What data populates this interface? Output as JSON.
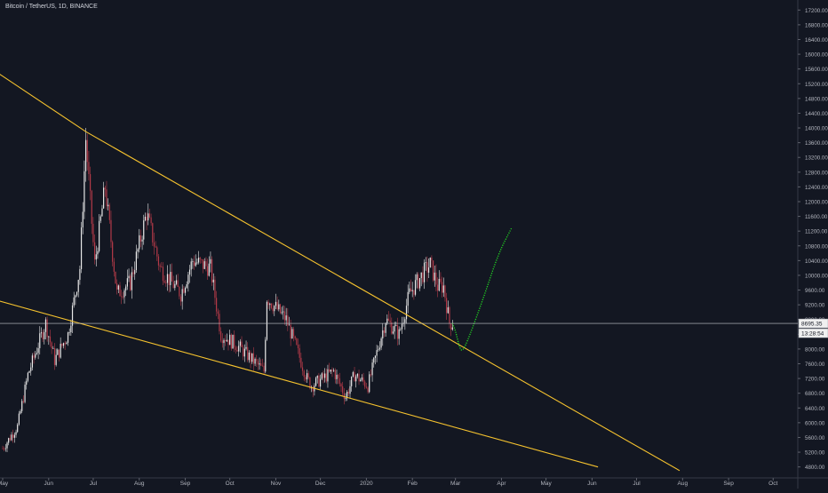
{
  "header": {
    "symbol_title": "Bitcoin / TetherUS, 1D, BINANCE"
  },
  "price_axis": {
    "ticks": [
      "17200.00",
      "16800.00",
      "16400.00",
      "16000.00",
      "15600.00",
      "15200.00",
      "14800.00",
      "14400.00",
      "14000.00",
      "13600.00",
      "13200.00",
      "12800.00",
      "12400.00",
      "12000.00",
      "11600.00",
      "11200.00",
      "10800.00",
      "10400.00",
      "10000.00",
      "9600.00",
      "9200.00",
      "8800.00",
      "8400.00",
      "8000.00",
      "7600.00",
      "7200.00",
      "6800.00",
      "6400.00",
      "6000.00",
      "5600.00",
      "5200.00",
      "4800.00"
    ],
    "current_price": "8695.35",
    "countdown": "13:28:54"
  },
  "time_axis": {
    "labels": [
      "May",
      "Jun",
      "Jul",
      "Aug",
      "Sep",
      "Oct",
      "Nov",
      "Dec",
      "2020",
      "Feb",
      "Mar",
      "Apr",
      "May",
      "Jun",
      "Jul",
      "Aug",
      "Sep",
      "Oct"
    ]
  },
  "colors": {
    "background": "#131722",
    "bull_candle": "#e8e8e8",
    "bear_candle": "#b33a48",
    "trendline": "#f5c22e",
    "projection": "#22dd22",
    "axis_text": "#b2b5be",
    "price_line": "#c9cbd1"
  },
  "chart_data": {
    "type": "candlestick",
    "title": "Bitcoin / TetherUS, 1D, BINANCE",
    "ylim": [
      4700,
      17500
    ],
    "x_start": "2019-05-01",
    "price_anchors": [
      [
        "2019-05-01",
        5300
      ],
      [
        "2019-05-11",
        5900
      ],
      [
        "2019-05-18",
        7300
      ],
      [
        "2019-05-30",
        8700
      ],
      [
        "2019-06-05",
        7700
      ],
      [
        "2019-06-14",
        8400
      ],
      [
        "2019-06-22",
        10200
      ],
      [
        "2019-06-26",
        13700
      ],
      [
        "2019-07-02",
        10300
      ],
      [
        "2019-07-09",
        12400
      ],
      [
        "2019-07-17",
        9500
      ],
      [
        "2019-07-26",
        9800
      ],
      [
        "2019-08-06",
        11700
      ],
      [
        "2019-08-15",
        10200
      ],
      [
        "2019-08-29",
        9500
      ],
      [
        "2019-09-06",
        10400
      ],
      [
        "2019-09-18",
        10200
      ],
      [
        "2019-09-25",
        8400
      ],
      [
        "2019-10-06",
        8100
      ],
      [
        "2019-10-24",
        7400
      ],
      [
        "2019-10-26",
        9400
      ],
      [
        "2019-11-08",
        8800
      ],
      [
        "2019-11-22",
        7200
      ],
      [
        "2019-11-25",
        7000
      ],
      [
        "2019-12-10",
        7400
      ],
      [
        "2019-12-18",
        6700
      ],
      [
        "2019-12-24",
        7300
      ],
      [
        "2020-01-02",
        7000
      ],
      [
        "2020-01-14",
        8800
      ],
      [
        "2020-01-23",
        8400
      ],
      [
        "2020-01-30",
        9500
      ],
      [
        "2020-02-09",
        10100
      ],
      [
        "2020-02-13",
        10300
      ],
      [
        "2020-02-18",
        9700
      ],
      [
        "2020-02-22",
        9700
      ],
      [
        "2020-02-26",
        8700
      ],
      [
        "2020-02-28",
        8700
      ]
    ],
    "trendlines": [
      {
        "points": [
          [
            "2019-04-20",
            15700
          ],
          [
            "2019-06-26",
            13900
          ],
          [
            "2020-07-30",
            4700
          ]
        ]
      },
      {
        "points": [
          [
            "2019-04-20",
            9400
          ],
          [
            "2020-06-05",
            4800
          ]
        ]
      }
    ],
    "projection": {
      "points": [
        [
          "2020-02-28",
          8700
        ],
        [
          "2020-03-01",
          8500
        ],
        [
          "2020-03-04",
          8000
        ],
        [
          "2020-03-06",
          7950
        ],
        [
          "2020-03-10",
          8300
        ],
        [
          "2020-03-20",
          9400
        ],
        [
          "2020-03-30",
          10600
        ],
        [
          "2020-04-08",
          11300
        ]
      ]
    },
    "current_price": 8695.35
  }
}
